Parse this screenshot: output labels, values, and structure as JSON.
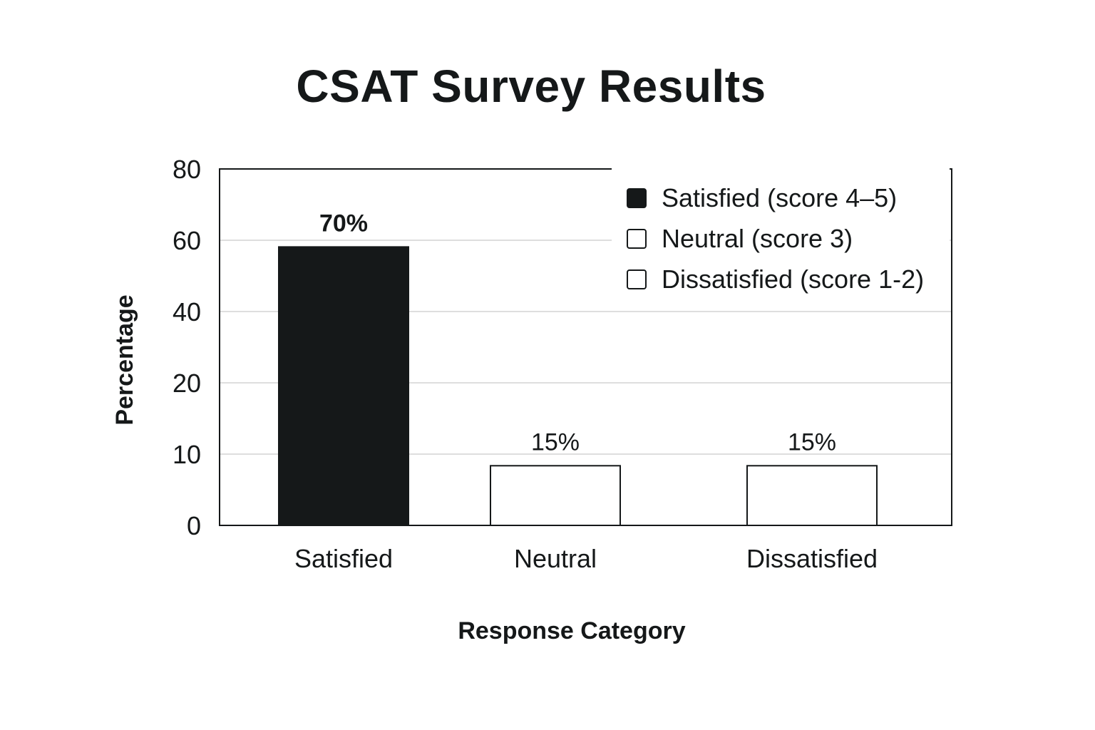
{
  "chart_data": {
    "type": "bar",
    "title": "CSAT Survey Results",
    "xlabel": "Response Category",
    "ylabel": "Percentage",
    "categories": [
      "Satisfied",
      "Neutral",
      "Dissatisfied"
    ],
    "values": [
      70,
      15,
      15
    ],
    "data_labels": [
      "70%",
      "15%",
      "15%"
    ],
    "yticks": [
      0,
      10,
      20,
      40,
      60,
      80
    ],
    "ytick_labels": [
      "0",
      "10",
      "20",
      "40",
      "60",
      "80"
    ],
    "ylim": [
      0,
      80
    ],
    "grid": true,
    "legend_position": "top-right",
    "legend": [
      {
        "label": "Satisfied (score 4–5)",
        "fill": "#151819"
      },
      {
        "label": "Neutral (score 3)",
        "fill": "#ffffff"
      },
      {
        "label": "Dissatisfied (score 1-2)",
        "fill": "#ffffff"
      }
    ],
    "bar_fills": [
      "#151819",
      "#ffffff",
      "#ffffff"
    ],
    "colors": {
      "ink": "#151819",
      "grid": "#d4d4d4",
      "background": "#ffffff"
    }
  }
}
